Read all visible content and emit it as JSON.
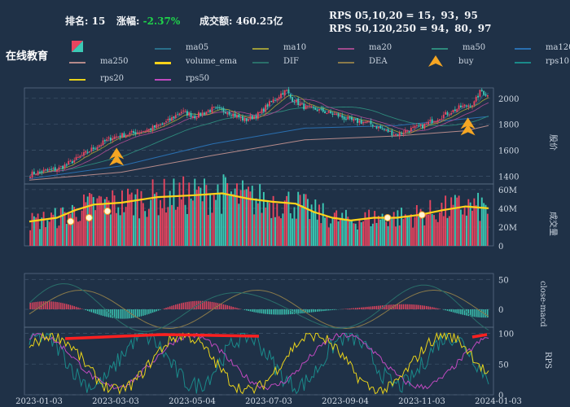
{
  "header": {
    "rank_label": "排名:",
    "rank_value": "15",
    "change_label": "涨幅:",
    "change_value": "-2.37%",
    "turnover_label": "成交额:",
    "turnover_value": "460.25亿",
    "rps_line1": "RPS 05,10,20 = 15，93，95",
    "rps_line2": "RPS 50,120,250 = 94，80，97"
  },
  "stock_name": "在线教育",
  "legend": [
    {
      "label": "ma05",
      "color": "#2a6f8a"
    },
    {
      "label": "ma10",
      "color": "#9c9b3a"
    },
    {
      "label": "ma20",
      "color": "#a04a8c"
    },
    {
      "label": "ma50",
      "color": "#2e8a7c"
    },
    {
      "label": "ma120",
      "color": "#2a6fb0"
    },
    {
      "label": "ma250",
      "color": "#b58a8a"
    },
    {
      "label": "volume_ema",
      "color": "#ffd21a"
    },
    {
      "label": "DIF",
      "color": "#2a6f6a"
    },
    {
      "label": "DEA",
      "color": "#8a7a4a"
    },
    {
      "label": "buy",
      "color": "#f5a623"
    },
    {
      "label": "rps10",
      "color": "#1a8a8a"
    },
    {
      "label": "rps20",
      "color": "#e8d21a"
    },
    {
      "label": "rps50",
      "color": "#c04ac0"
    }
  ],
  "colors": {
    "up": "#e8455f",
    "down": "#3cc9b5",
    "background": "#1f3147",
    "grid": "#3b4f66"
  },
  "chart_data": [
    {
      "type": "candlestick",
      "panel": "price",
      "ylabel": "股价",
      "yticks": [
        1400,
        1600,
        1800,
        2000
      ],
      "ylim": [
        1340,
        2080
      ],
      "x_dates": [
        "2023-01-03",
        "2023-03-03",
        "2023-05-04",
        "2023-07-03",
        "2023-09-04",
        "2023-11-03",
        "2024-01-03"
      ],
      "close_path": [
        [
          0,
          1415
        ],
        [
          0.03,
          1440
        ],
        [
          0.06,
          1455
        ],
        [
          0.1,
          1530
        ],
        [
          0.14,
          1620
        ],
        [
          0.18,
          1700
        ],
        [
          0.22,
          1730
        ],
        [
          0.26,
          1760
        ],
        [
          0.3,
          1820
        ],
        [
          0.33,
          1900
        ],
        [
          0.36,
          1860
        ],
        [
          0.4,
          1920
        ],
        [
          0.43,
          1900
        ],
        [
          0.47,
          1830
        ],
        [
          0.5,
          1880
        ],
        [
          0.52,
          1950
        ],
        [
          0.55,
          2040
        ],
        [
          0.56,
          2060
        ],
        [
          0.57,
          2000
        ],
        [
          0.6,
          1930
        ],
        [
          0.63,
          1910
        ],
        [
          0.67,
          1870
        ],
        [
          0.7,
          1830
        ],
        [
          0.74,
          1810
        ],
        [
          0.77,
          1760
        ],
        [
          0.8,
          1720
        ],
        [
          0.83,
          1760
        ],
        [
          0.86,
          1790
        ],
        [
          0.88,
          1830
        ],
        [
          0.91,
          1880
        ],
        [
          0.94,
          1930
        ],
        [
          0.97,
          1960
        ],
        [
          0.985,
          2060
        ],
        [
          1.0,
          2020
        ]
      ],
      "ma_paths": {
        "ma120": [
          [
            0,
            1380
          ],
          [
            0.2,
            1480
          ],
          [
            0.4,
            1650
          ],
          [
            0.6,
            1770
          ],
          [
            0.8,
            1790
          ],
          [
            1.0,
            1860
          ]
        ],
        "ma250": [
          [
            0,
            1370
          ],
          [
            0.2,
            1430
          ],
          [
            0.4,
            1560
          ],
          [
            0.6,
            1680
          ],
          [
            0.8,
            1710
          ],
          [
            0.95,
            1750
          ],
          [
            1.0,
            1790
          ]
        ]
      },
      "buy_signals": [
        0.19,
        0.955
      ]
    },
    {
      "type": "bar",
      "panel": "volume",
      "ylabel": "成交量",
      "yticks": [
        "0",
        "20M",
        "40M",
        "60M"
      ],
      "ylim": [
        0,
        66
      ],
      "ema_path": [
        [
          0,
          26
        ],
        [
          0.06,
          30
        ],
        [
          0.1,
          38
        ],
        [
          0.14,
          44
        ],
        [
          0.2,
          46
        ],
        [
          0.28,
          52
        ],
        [
          0.36,
          54
        ],
        [
          0.42,
          56
        ],
        [
          0.48,
          50
        ],
        [
          0.53,
          47
        ],
        [
          0.58,
          45
        ],
        [
          0.62,
          36
        ],
        [
          0.66,
          30
        ],
        [
          0.7,
          27
        ],
        [
          0.75,
          30
        ],
        [
          0.8,
          30
        ],
        [
          0.85,
          33
        ],
        [
          0.9,
          38
        ],
        [
          0.95,
          42
        ],
        [
          1.0,
          40
        ]
      ]
    },
    {
      "type": "line",
      "panel": "macd",
      "ylabel": "close-macd",
      "yticks": [
        0,
        50
      ],
      "ylim": [
        -30,
        60
      ]
    },
    {
      "type": "line",
      "panel": "rps",
      "ylabel": "RPS",
      "yticks": [
        0,
        50,
        100
      ],
      "ylim": [
        0,
        110
      ]
    }
  ]
}
